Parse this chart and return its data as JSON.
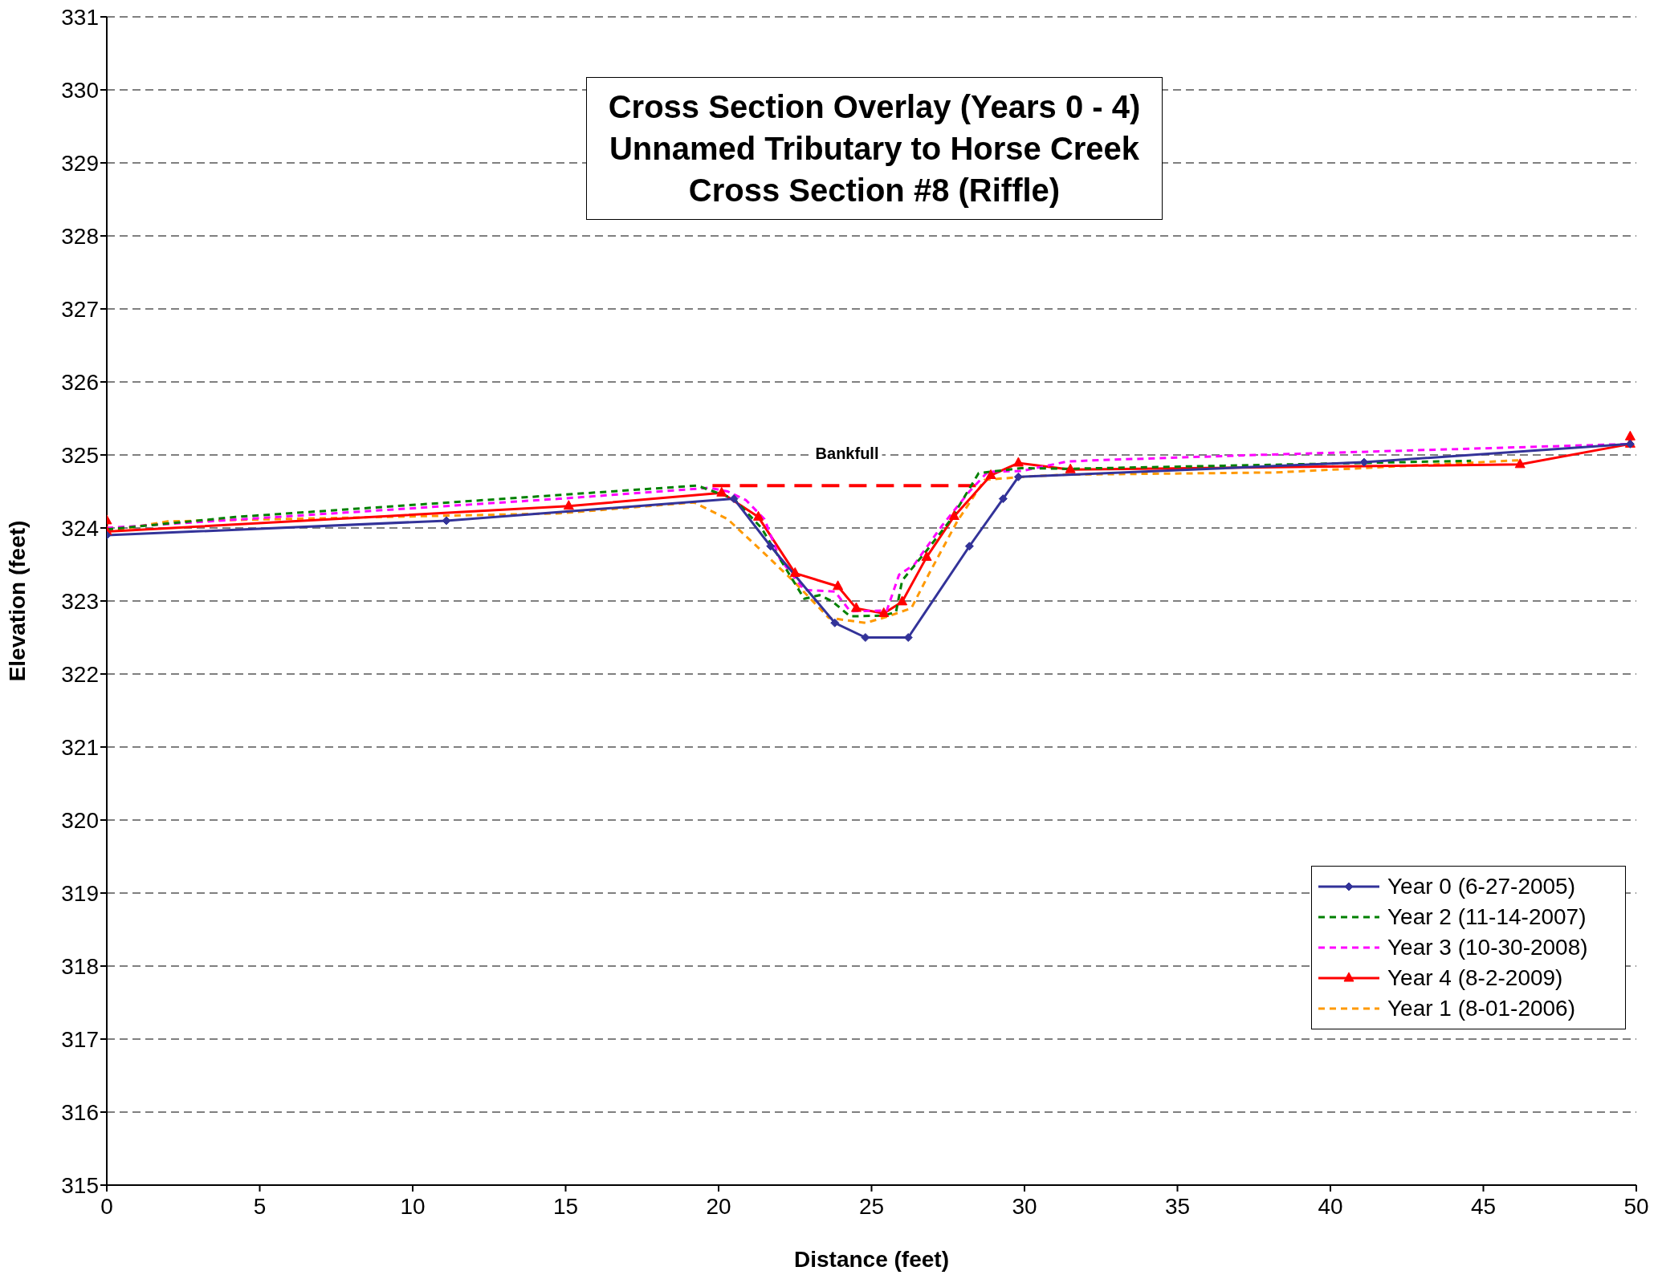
{
  "chart_data": {
    "type": "line",
    "title": "Cross Section Overlay (Years 0 - 4)\nUnnamed Tributary to Horse Creek\nCross Section #8 (Riffle)",
    "xlabel": "Distance (feet)",
    "ylabel": "Elevation (feet)",
    "xlim": [
      0,
      50
    ],
    "xticks": [
      0,
      5,
      10,
      15,
      20,
      25,
      30,
      35,
      40,
      45,
      50
    ],
    "ylim": [
      315,
      331
    ],
    "yticks": [
      315,
      316,
      317,
      318,
      319,
      320,
      321,
      322,
      323,
      324,
      325,
      326,
      327,
      328,
      329,
      330,
      331
    ],
    "grid": "y",
    "legend": "bottom right",
    "series": [
      {
        "name": "Year 0 (6-27-2005)",
        "color": "#333399",
        "marker": "diamond",
        "line_style": "solid",
        "x": [
          0,
          11.1,
          20.5,
          21.7,
          23.8,
          24.8,
          26.2,
          28.2,
          29.3,
          29.8,
          41.1,
          49.8
        ],
        "values": [
          323.9,
          324.1,
          324.4,
          323.75,
          322.7,
          322.5,
          322.5,
          323.75,
          324.4,
          324.7,
          324.9,
          325.15
        ]
      },
      {
        "name": "Year 2 (11-14-2007)",
        "color": "#008000",
        "marker": "none",
        "line_style": "dotted",
        "x": [
          0,
          4.2,
          19.3,
          20.5,
          21.4,
          22.0,
          22.8,
          23.3,
          23.7,
          24.3,
          25.4,
          25.8,
          26.0,
          26.8,
          27.6,
          28.5,
          29.9,
          31.4,
          44.6
        ],
        "values": [
          323.98,
          324.15,
          324.58,
          324.4,
          324.0,
          323.58,
          323.03,
          323.08,
          323.0,
          322.79,
          322.8,
          322.85,
          323.28,
          323.69,
          324.12,
          324.75,
          324.82,
          324.81,
          324.92
        ]
      },
      {
        "name": "Year 3 (10-30-2008)",
        "color": "#ff00ff",
        "marker": "none",
        "line_style": "dotted",
        "x": [
          0,
          14.8,
          19.7,
          20.3,
          20.9,
          21.5,
          22.0,
          22.8,
          23.8,
          24.3,
          25.5,
          25.9,
          26.4,
          27.3,
          28.2,
          28.8,
          29.9,
          31.4,
          32.5,
          37.6,
          49.8
        ],
        "values": [
          324.0,
          324.4,
          324.55,
          324.5,
          324.38,
          324.12,
          323.58,
          323.15,
          323.13,
          322.86,
          322.87,
          323.36,
          323.5,
          324.03,
          324.5,
          324.77,
          324.78,
          324.91,
          324.93,
          325.0,
          325.15
        ]
      },
      {
        "name": "Year 4 (8-2-2009)",
        "color": "#ff0000",
        "marker": "triangle",
        "line_style": "solid",
        "x": [
          0,
          0,
          15.1,
          20.1,
          21.3,
          22.5,
          23.9,
          24.5,
          25.4,
          26.0,
          26.8,
          27.7,
          28.9,
          29.8,
          31.5,
          46.2,
          49.8,
          49.8
        ],
        "values": [
          324.1,
          323.95,
          324.3,
          324.48,
          324.15,
          323.38,
          323.2,
          322.9,
          322.83,
          322.99,
          323.6,
          324.16,
          324.72,
          324.89,
          324.8,
          324.87,
          325.15,
          325.25
        ]
      },
      {
        "name": "Year 1 (8-01-2006)",
        "color": "#ff9900",
        "marker": "none",
        "line_style": "dotted",
        "x": [
          0,
          2.0,
          14.8,
          19.2,
          20.3,
          21.5,
          22.5,
          23.6,
          24.8,
          25.4,
          26.3,
          26.9,
          27.8,
          28.7,
          30.3,
          31.4,
          38.2,
          46.3
        ],
        "values": [
          323.95,
          324.09,
          324.2,
          324.35,
          324.12,
          323.65,
          323.25,
          322.77,
          322.7,
          322.77,
          322.9,
          323.39,
          324.09,
          324.66,
          324.71,
          324.73,
          324.76,
          324.93
        ]
      },
      {
        "color": "#ff0000",
        "marker": "none",
        "line_style": "dashed",
        "x": [
          19.8,
          28.6
        ],
        "values": [
          324.58,
          324.58
        ]
      }
    ],
    "annotations": [
      {
        "text": "Bankfull",
        "x": 24.2,
        "y": 324.58
      }
    ]
  }
}
